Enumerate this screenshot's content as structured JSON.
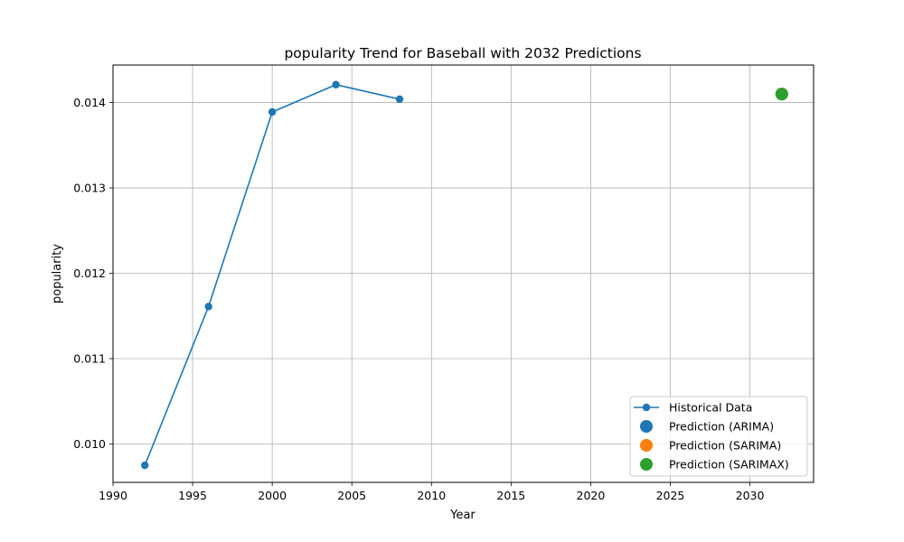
{
  "chart_data": {
    "type": "line",
    "title": "popularity Trend for Baseball with 2032 Predictions",
    "xlabel": "Year",
    "ylabel": "popularity",
    "xlim": [
      1990,
      2034
    ],
    "ylim": [
      0.00955,
      0.01444
    ],
    "xticks": [
      1990,
      1995,
      2000,
      2005,
      2010,
      2015,
      2020,
      2025,
      2030
    ],
    "yticks": [
      0.01,
      0.011,
      0.012,
      0.013,
      0.014
    ],
    "ytick_labels": [
      "0.010",
      "0.011",
      "0.012",
      "0.013",
      "0.014"
    ],
    "grid": true,
    "legend_position": "lower-right",
    "series": [
      {
        "name": "Historical Data",
        "kind": "line-marker",
        "color": "#1f77b4",
        "x": [
          1992,
          1996,
          2000,
          2004,
          2008
        ],
        "y": [
          0.00975,
          0.01161,
          0.01389,
          0.01421,
          0.01404
        ]
      },
      {
        "name": "Prediction (ARIMA)",
        "kind": "point",
        "color": "#1f77b4",
        "x": [
          2032
        ],
        "y": [
          0.0141
        ]
      },
      {
        "name": "Prediction (SARIMA)",
        "kind": "point",
        "color": "#ff7f0e",
        "x": [
          2032
        ],
        "y": [
          0.0141
        ]
      },
      {
        "name": "Prediction (SARIMAX)",
        "kind": "point",
        "color": "#2ca02c",
        "x": [
          2032
        ],
        "y": [
          0.0141
        ]
      }
    ]
  }
}
